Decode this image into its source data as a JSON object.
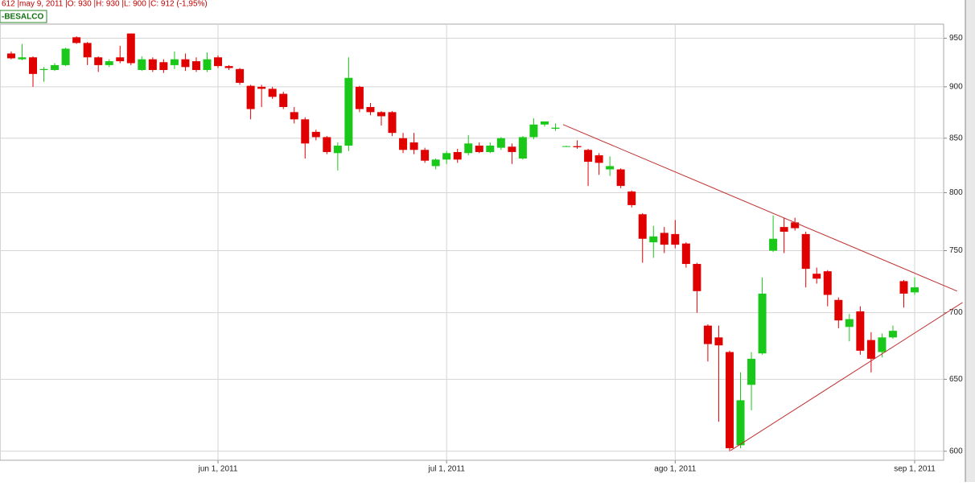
{
  "chart_data": {
    "type": "candlestick",
    "title": "612 |may 9, 2011 |O: 930 |H: 930 |L: 900 |C: 912 (-1,95%)",
    "symbol": "-BESALCO",
    "categories": [
      null,
      null,
      null,
      null,
      null,
      null,
      null,
      null,
      null,
      null,
      null,
      null,
      null,
      null,
      null,
      null,
      null,
      null,
      null,
      "jun 1, 2011",
      null,
      null,
      null,
      null,
      null,
      null,
      null,
      null,
      null,
      null,
      null,
      null,
      null,
      null,
      null,
      null,
      null,
      null,
      null,
      null,
      "jul 1, 2011",
      null,
      null,
      null,
      null,
      null,
      null,
      null,
      null,
      null,
      null,
      null,
      null,
      null,
      null,
      null,
      null,
      null,
      null,
      null,
      null,
      "ago 1, 2011",
      null,
      null,
      null,
      null,
      null,
      null,
      null,
      null,
      null,
      null,
      null,
      null,
      null,
      null,
      null,
      null,
      null,
      null,
      null,
      null,
      null,
      "sep 1, 2011"
    ],
    "open": [
      934,
      928,
      930,
      917,
      917,
      922,
      951,
      945,
      930,
      922,
      930,
      955,
      917,
      928,
      925,
      922,
      928,
      926,
      917,
      930,
      921,
      918,
      901,
      900,
      898,
      893,
      875,
      868,
      856,
      851,
      836,
      843,
      900,
      880,
      875,
      875,
      850,
      846,
      839,
      824,
      830,
      837,
      836,
      843,
      837,
      841,
      842,
      831,
      851,
      863,
      859,
      842,
      842.5,
      839,
      834,
      821,
      821,
      801,
      781,
      757,
      765,
      764,
      756,
      739,
      690,
      681,
      670,
      604,
      646,
      669,
      750,
      770,
      774,
      764,
      731,
      733,
      710,
      689,
      701,
      679,
      670,
      681,
      725,
      716
    ],
    "high": [
      936,
      944,
      931,
      920,
      924,
      940,
      952,
      946,
      931,
      928,
      942,
      955,
      931,
      930,
      928,
      936,
      934,
      930,
      935,
      932,
      922,
      919,
      902,
      902,
      900,
      895,
      880,
      870,
      858,
      852,
      846,
      930,
      901,
      884,
      876,
      876,
      855,
      855,
      841,
      831,
      838,
      840,
      853,
      846,
      846,
      851,
      845,
      852,
      869,
      866,
      864,
      843,
      848,
      840,
      836,
      833,
      822,
      802,
      782,
      771,
      770,
      776,
      757,
      740,
      691,
      690,
      671,
      655,
      670,
      728,
      780,
      778,
      778,
      766,
      736,
      734,
      712,
      699,
      705,
      685,
      684,
      690,
      726,
      728
    ],
    "low": [
      928,
      927,
      900,
      905,
      916,
      921,
      944,
      922,
      915,
      920,
      924,
      922,
      916,
      915,
      914,
      918,
      916,
      915,
      915,
      919,
      917,
      902,
      868,
      880,
      888,
      878,
      864,
      831,
      848,
      835,
      820,
      838,
      875,
      872,
      862,
      852,
      836,
      835,
      827,
      821,
      826,
      827,
      834,
      836,
      836,
      839,
      826,
      830,
      849,
      861,
      857,
      842,
      840,
      806,
      816,
      815,
      804,
      787,
      740,
      744,
      748,
      752,
      736,
      700,
      663,
      620,
      600,
      602,
      628,
      668,
      749,
      748,
      767,
      720,
      723,
      705,
      688,
      678,
      668,
      655,
      666,
      680,
      704,
      714
    ],
    "close": [
      929,
      930,
      913,
      918,
      922,
      939,
      945,
      930,
      922,
      926,
      926,
      924,
      928,
      917,
      917,
      928,
      920,
      917,
      928,
      921,
      919,
      904,
      878,
      898,
      890,
      880,
      868,
      845,
      851,
      837,
      843,
      909,
      878,
      875,
      871,
      855,
      839,
      839,
      829,
      830,
      836,
      830,
      845,
      837,
      843,
      850,
      837,
      851,
      863,
      866,
      860,
      842.5,
      841.5,
      828,
      827,
      824,
      806,
      789,
      760,
      762,
      755,
      755,
      739,
      717,
      676,
      675,
      602,
      635,
      665,
      715,
      760,
      766,
      769,
      735,
      727,
      714,
      694,
      695,
      671,
      665,
      681,
      686,
      715,
      720
    ],
    "up_color": "#19c819",
    "down_color": "#e00000",
    "xlim": [
      -1.03,
      85.66
    ],
    "ylim": [
      594,
      965
    ],
    "yticks": [
      600,
      650,
      700,
      750,
      800,
      850,
      900,
      950
    ],
    "log_scale": true,
    "grid": true,
    "trendlines": [
      {
        "x": [
          50.7,
          86.9
        ],
        "values": [
          863,
          717
        ],
        "color": "#c03030"
      },
      {
        "x": [
          66.1,
          87.4
        ],
        "values": [
          600.5,
          708
        ],
        "color": "#c03030"
      }
    ]
  }
}
